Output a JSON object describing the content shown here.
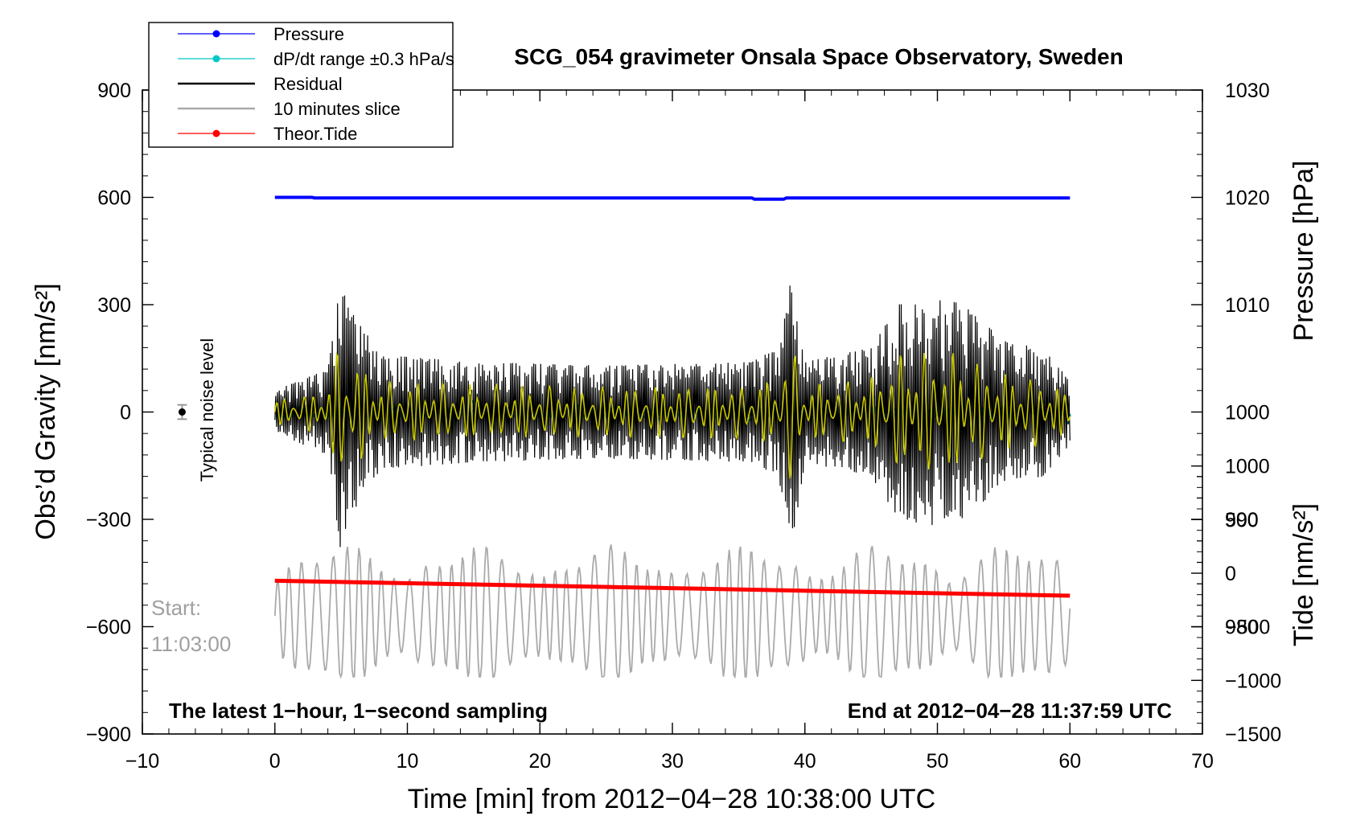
{
  "chart_data": {
    "type": "line",
    "title": "SCG_054 gravimeter Onsala Space Observatory, Sweden",
    "xlabel": "Time [min] from 2012−04−28 10:38:00 UTC",
    "xlim": [
      -10,
      70
    ],
    "xticks": [
      -10,
      0,
      10,
      20,
      30,
      40,
      50,
      60,
      70
    ],
    "xtick_labels": [
      "−10",
      "0",
      "10",
      "20",
      "30",
      "40",
      "50",
      "60",
      "70"
    ],
    "left_axis": {
      "label": "Obs’d Gravity [nm/s²]",
      "ylim": [
        -900,
        900
      ],
      "ticks": [
        -900,
        -600,
        -300,
        0,
        300,
        600,
        900
      ],
      "tick_labels": [
        "−900",
        "−600",
        "−300",
        "0",
        "300",
        "600",
        "900"
      ]
    },
    "right_axis_pressure": {
      "label": "Pressure [hPa]",
      "ticks": [
        980,
        990,
        1000,
        1010,
        1020,
        1030
      ],
      "tick_labels": [
        "980",
        "990",
        "1000",
        "1010",
        "1020",
        "1030"
      ]
    },
    "right_axis_tide": {
      "label": "Tide [nm/s²]",
      "ticks": [
        -1500,
        -1000,
        -500,
        0,
        500,
        1000
      ],
      "tick_labels": [
        "−1500",
        "−1000",
        "−500",
        "0",
        "500",
        "1000"
      ]
    },
    "legend": {
      "position": "top-left",
      "entries": [
        {
          "label": "Pressure",
          "color": "#0000ff",
          "style": "line-marker"
        },
        {
          "label": "dP/dt range ±0.3 hPa/s",
          "color": "#00c8c8",
          "style": "line-marker"
        },
        {
          "label": "Residual",
          "color": "#000000",
          "style": "line"
        },
        {
          "label": "10 minutes slice",
          "color": "#aaaaaa",
          "style": "line"
        },
        {
          "label": "Theor.Tide",
          "color": "#ff0000",
          "style": "line-marker"
        }
      ]
    },
    "series": [
      {
        "name": "Pressure",
        "axis": "pressure",
        "color": "#0000ff",
        "x_range": [
          0,
          60
        ],
        "value_approx": 1020
      },
      {
        "name": "dP/dt range ±0.3 hPa/s",
        "axis": "pressure",
        "color": "#00c8c8",
        "x_range": [
          0,
          60
        ],
        "value_approx": 1000
      },
      {
        "name": "Residual",
        "axis": "gravity",
        "color": "#000000",
        "x_range": [
          0,
          60
        ],
        "envelope": {
          "x": [
            0,
            4,
            5,
            5.5,
            8,
            15,
            25,
            36,
            38,
            39,
            40,
            45,
            47,
            50,
            52,
            55,
            58,
            60
          ],
          "amplitude": [
            60,
            120,
            400,
            300,
            160,
            140,
            130,
            140,
            180,
            380,
            140,
            180,
            300,
            320,
            300,
            200,
            180,
            90
          ]
        }
      },
      {
        "color": "#c8c800",
        "axis": "gravity",
        "x_range": [
          0,
          60
        ]
      },
      {
        "name": "10 minutes slice",
        "axis": "gravity",
        "color": "#aaaaaa",
        "x_range": [
          0,
          60
        ],
        "range": [
          -740,
          -340
        ]
      },
      {
        "name": "Theor.Tide",
        "axis": "tide",
        "color": "#ff0000",
        "x": [
          0,
          60
        ],
        "values": [
          -70,
          -210
        ]
      }
    ],
    "annotations": {
      "noise_label": "Typical noise level",
      "noise_point": {
        "x": -7,
        "y": 0,
        "err": 20
      },
      "start_line1": "Start:",
      "start_line2": "11:03:00",
      "bottom_left": "The latest 1−hour, 1−second sampling",
      "bottom_right": "End at 2012−04−28 11:37:59 UTC"
    }
  }
}
